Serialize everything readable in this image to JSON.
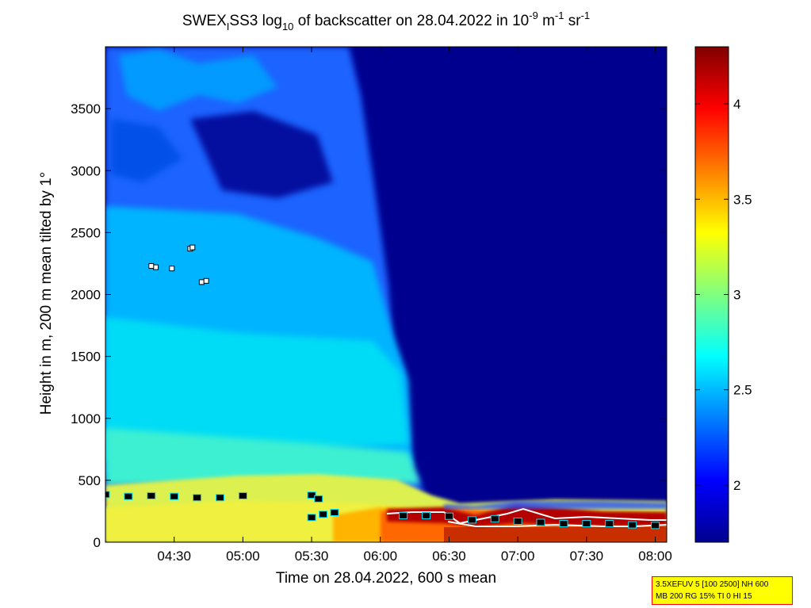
{
  "chart_data": {
    "type": "heatmap",
    "title": {
      "pre": "SWEX",
      "sub1": "I",
      "mid": "SS3 log",
      "sub2": "10",
      "post": " of backscatter on 28.04.2022 in 10",
      "sup1": "-9",
      "unit1": " m",
      "sup2": "-1",
      "unit2": " sr",
      "sup3": "-1"
    },
    "xlabel": "Time on 28.04.2022, 600 s mean",
    "ylabel": "Height in m, 200 m mean tilted by 1°",
    "xlim": [
      "04:00",
      "08:05"
    ],
    "ylim": [
      0,
      4000
    ],
    "x_ticks": [
      "04:30",
      "05:00",
      "05:30",
      "06:00",
      "06:30",
      "07:00",
      "07:30",
      "08:00"
    ],
    "y_ticks": [
      0,
      500,
      1000,
      1500,
      2000,
      2500,
      3000,
      3500
    ],
    "colorbar": {
      "range": [
        1.7,
        4.3
      ],
      "ticks": [
        2,
        2.5,
        3,
        3.5,
        4
      ],
      "tick_labels": [
        "2",
        "2.5",
        "3",
        "3.5",
        "4"
      ],
      "colormap": "jet"
    },
    "grid": false,
    "colors": {
      "background_high": "#00008f",
      "boundary_layer": "#e6f04a",
      "max": "#800000"
    },
    "field_description_levels": {
      "clear_air_after_0615": 1.75,
      "aerosol_upper_before_0600": 2.3,
      "aerosol_mid": 2.6,
      "surface_layer": 3.2,
      "cloud_base_after_0615": 4.1
    },
    "layer_markers": [
      {
        "time": "04:00",
        "height": 385
      },
      {
        "time": "04:10",
        "height": 370
      },
      {
        "time": "04:20",
        "height": 375
      },
      {
        "time": "04:30",
        "height": 370
      },
      {
        "time": "04:40",
        "height": 360
      },
      {
        "time": "04:50",
        "height": 360
      },
      {
        "time": "05:00",
        "height": 375
      },
      {
        "time": "05:30",
        "height": 380
      },
      {
        "time": "05:33",
        "height": 350
      },
      {
        "time": "05:30",
        "height": 200
      },
      {
        "time": "05:35",
        "height": 225
      },
      {
        "time": "05:40",
        "height": 240
      },
      {
        "time": "06:10",
        "height": 215
      },
      {
        "time": "06:20",
        "height": 215
      },
      {
        "time": "06:30",
        "height": 210
      },
      {
        "time": "06:40",
        "height": 180
      },
      {
        "time": "06:50",
        "height": 190
      },
      {
        "time": "07:00",
        "height": 170
      },
      {
        "time": "07:10",
        "height": 160
      },
      {
        "time": "07:20",
        "height": 150
      },
      {
        "time": "07:30",
        "height": 150
      },
      {
        "time": "07:40",
        "height": 150
      },
      {
        "time": "07:50",
        "height": 140
      },
      {
        "time": "08:00",
        "height": 135
      }
    ],
    "aerosol_points": [
      {
        "time": "04:22",
        "height": 2220
      },
      {
        "time": "04:20",
        "height": 2230
      },
      {
        "time": "04:29",
        "height": 2210
      },
      {
        "time": "04:37",
        "height": 2370
      },
      {
        "time": "04:38",
        "height": 2380
      },
      {
        "time": "04:42",
        "height": 2100
      },
      {
        "time": "04:44",
        "height": 2110
      }
    ]
  },
  "info_box": {
    "line1": "3.5XEFUV 5 [100 2500] NH 600",
    "line2": "MB 200 RG 15% TI 0 HI 15"
  }
}
